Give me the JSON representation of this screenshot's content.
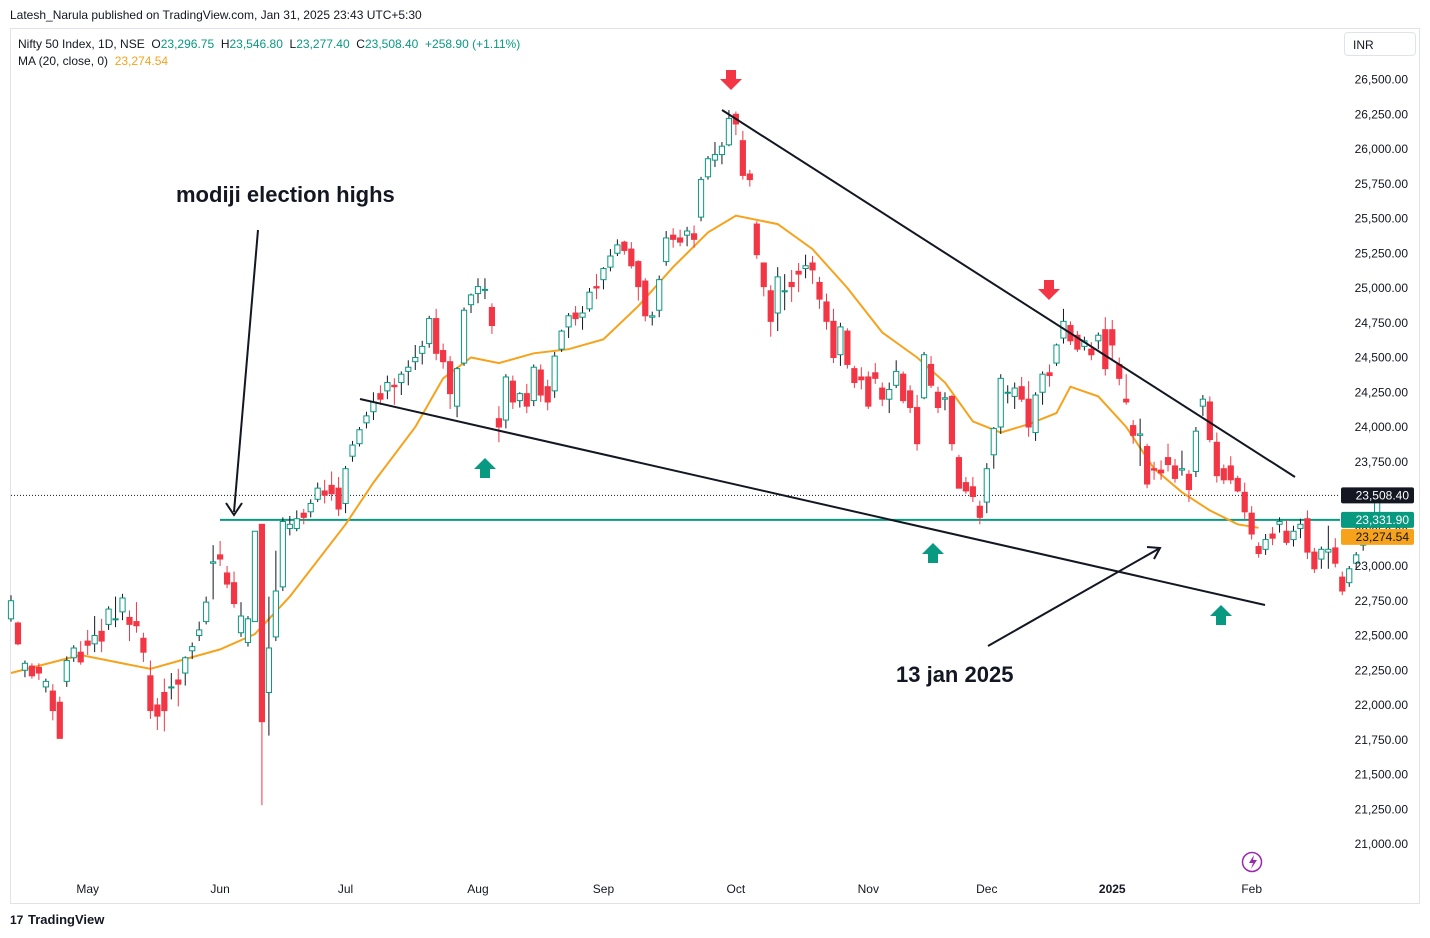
{
  "header": {
    "publisher": "Latesh_Narula published on TradingView.com, Jan 31, 2025 23:43 UTC+5:30"
  },
  "legend": {
    "symbol": "Nifty 50 Index, 1D, NSE",
    "o_label": "O",
    "o_value": "23,296.75",
    "h_label": "H",
    "h_value": "23,546.80",
    "l_label": "L",
    "l_value": "23,277.40",
    "c_label": "C",
    "c_value": "23,508.40",
    "change": "+258.90 (+1.11%)",
    "ma_label": "MA (20, close, 0)",
    "ma_value": "23,274.54"
  },
  "currency": "INR",
  "footer": {
    "brand": "TradingView",
    "logo_mark": "17"
  },
  "colors": {
    "up": "#089981",
    "down": "#f23645",
    "ma": "#f7a21b",
    "support": "#089981",
    "arrow_up": "#089981",
    "arrow_down": "#f23645"
  },
  "chart_data": {
    "type": "candlestick",
    "title": "",
    "ylim": [
      20750,
      26750
    ],
    "y_ticks": [
      "26,500.00",
      "26,250.00",
      "26,000.00",
      "25,750.00",
      "25,500.00",
      "25,250.00",
      "25,000.00",
      "24,750.00",
      "24,500.00",
      "24,250.00",
      "24,000.00",
      "23,750.00",
      "23,500.00",
      "23,250.00",
      "23,000.00",
      "22,750.00",
      "22,500.00",
      "22,250.00",
      "22,000.00",
      "21,750.00",
      "21,500.00",
      "21,250.00",
      "21,000.00"
    ],
    "x_ticks": [
      {
        "label": "May",
        "bar": 11
      },
      {
        "label": "Jun",
        "bar": 30
      },
      {
        "label": "Jul",
        "bar": 48
      },
      {
        "label": "Aug",
        "bar": 67
      },
      {
        "label": "Sep",
        "bar": 85
      },
      {
        "label": "Oct",
        "bar": 104
      },
      {
        "label": "Nov",
        "bar": 123
      },
      {
        "label": "Dec",
        "bar": 140
      },
      {
        "label": "2025",
        "bar": 158
      },
      {
        "label": "Feb",
        "bar": 178
      }
    ],
    "price_labels": [
      {
        "text": "23,508.40",
        "value": 23508.4,
        "kind": "last"
      },
      {
        "text": "23,331.90",
        "value": 23331.9,
        "kind": "support"
      },
      {
        "text": "23,274.54",
        "value": 23274.54,
        "kind": "ma"
      }
    ],
    "last_price": 23508.4,
    "support_level": 23331.9,
    "candles": [
      [
        22620,
        22790,
        22600,
        22750
      ],
      [
        22590,
        22600,
        22430,
        22440
      ],
      [
        22250,
        22320,
        22200,
        22300
      ],
      [
        22280,
        22300,
        22190,
        22210
      ],
      [
        22270,
        22300,
        22180,
        22230
      ],
      [
        22130,
        22190,
        22090,
        22170
      ],
      [
        22100,
        22150,
        21890,
        21960
      ],
      [
        22020,
        22060,
        21760,
        21760
      ],
      [
        22170,
        22350,
        22130,
        22320
      ],
      [
        22340,
        22430,
        22310,
        22410
      ],
      [
        22380,
        22460,
        22290,
        22310
      ],
      [
        22460,
        22540,
        22360,
        22430
      ],
      [
        22440,
        22640,
        22380,
        22500
      ],
      [
        22530,
        22620,
        22380,
        22460
      ],
      [
        22580,
        22710,
        22540,
        22690
      ],
      [
        22620,
        22780,
        22560,
        22620
      ],
      [
        22670,
        22800,
        22610,
        22770
      ],
      [
        22630,
        22680,
        22460,
        22580
      ],
      [
        22600,
        22740,
        22520,
        22570
      ],
      [
        22480,
        22520,
        22310,
        22380
      ],
      [
        22210,
        22320,
        21900,
        21960
      ],
      [
        22000,
        22050,
        21820,
        21920
      ],
      [
        22090,
        22190,
        21810,
        21960
      ],
      [
        22130,
        22230,
        22040,
        22130
      ],
      [
        22180,
        22260,
        21990,
        22150
      ],
      [
        22230,
        22350,
        22140,
        22340
      ],
      [
        22390,
        22450,
        22330,
        22420
      ],
      [
        22500,
        22600,
        22460,
        22540
      ],
      [
        22600,
        22780,
        22580,
        22740
      ],
      [
        23020,
        23150,
        22760,
        23030
      ],
      [
        23080,
        23180,
        23000,
        23050
      ],
      [
        22950,
        23000,
        22840,
        22870
      ],
      [
        22880,
        22960,
        22700,
        22730
      ],
      [
        22520,
        22740,
        22490,
        22640
      ],
      [
        22450,
        22640,
        22420,
        22620
      ],
      [
        22600,
        23250,
        22600,
        23250
      ],
      [
        23300,
        23300,
        21280,
        21880
      ],
      [
        22090,
        22780,
        21780,
        22410
      ],
      [
        22490,
        23110,
        22460,
        22820
      ],
      [
        22850,
        23350,
        22820,
        23320
      ],
      [
        23270,
        23360,
        23220,
        23300
      ],
      [
        23270,
        23400,
        23250,
        23340
      ],
      [
        23380,
        23410,
        23300,
        23350
      ],
      [
        23390,
        23480,
        23350,
        23450
      ],
      [
        23480,
        23600,
        23460,
        23560
      ],
      [
        23540,
        23620,
        23450,
        23510
      ],
      [
        23580,
        23680,
        23470,
        23520
      ],
      [
        23560,
        23640,
        23360,
        23410
      ],
      [
        23450,
        23720,
        23380,
        23700
      ],
      [
        23790,
        23900,
        23750,
        23870
      ],
      [
        23880,
        24000,
        23860,
        23980
      ],
      [
        24030,
        24110,
        23990,
        24080
      ],
      [
        24110,
        24250,
        24050,
        24180
      ],
      [
        24240,
        24300,
        24160,
        24200
      ],
      [
        24260,
        24370,
        24200,
        24320
      ],
      [
        24300,
        24350,
        24160,
        24290
      ],
      [
        24320,
        24400,
        24230,
        24380
      ],
      [
        24400,
        24480,
        24300,
        24430
      ],
      [
        24470,
        24590,
        24410,
        24500
      ],
      [
        24530,
        24620,
        24450,
        24580
      ],
      [
        24600,
        24800,
        24570,
        24780
      ],
      [
        24780,
        24850,
        24480,
        24530
      ],
      [
        24550,
        24600,
        24420,
        24470
      ],
      [
        24470,
        24510,
        24130,
        24240
      ],
      [
        24150,
        24430,
        24070,
        24420
      ],
      [
        24460,
        24860,
        24440,
        24840
      ],
      [
        24880,
        24960,
        24820,
        24950
      ],
      [
        24960,
        25070,
        24890,
        25010
      ],
      [
        24990,
        25070,
        24920,
        24990
      ],
      [
        24860,
        24890,
        24670,
        24730
      ],
      [
        24060,
        24150,
        23890,
        24000
      ],
      [
        24050,
        24380,
        23990,
        24360
      ],
      [
        24330,
        24370,
        24130,
        24180
      ],
      [
        24190,
        24250,
        24140,
        24240
      ],
      [
        24240,
        24310,
        24100,
        24150
      ],
      [
        24190,
        24450,
        24150,
        24430
      ],
      [
        24410,
        24450,
        24180,
        24230
      ],
      [
        24290,
        24340,
        24120,
        24180
      ],
      [
        24260,
        24540,
        24210,
        24510
      ],
      [
        24560,
        24700,
        24540,
        24690
      ],
      [
        24720,
        24820,
        24640,
        24800
      ],
      [
        24820,
        24870,
        24730,
        24780
      ],
      [
        24790,
        24870,
        24700,
        24820
      ],
      [
        24850,
        25000,
        24830,
        24970
      ],
      [
        25010,
        25100,
        24920,
        25000
      ],
      [
        25060,
        25150,
        24990,
        25140
      ],
      [
        25150,
        25280,
        25120,
        25230
      ],
      [
        25250,
        25350,
        25230,
        25310
      ],
      [
        25330,
        25340,
        25240,
        25270
      ],
      [
        25280,
        25330,
        25140,
        25160
      ],
      [
        25190,
        25200,
        24910,
        25010
      ],
      [
        25050,
        25070,
        24760,
        24800
      ],
      [
        24790,
        24830,
        24730,
        24800
      ],
      [
        24840,
        25090,
        24790,
        25060
      ],
      [
        25190,
        25410,
        25160,
        25360
      ],
      [
        25380,
        25430,
        25290,
        25350
      ],
      [
        25360,
        25420,
        25300,
        25330
      ],
      [
        25380,
        25440,
        25300,
        25410
      ],
      [
        25390,
        25450,
        25290,
        25350
      ],
      [
        25510,
        25800,
        25480,
        25780
      ],
      [
        25800,
        25950,
        25780,
        25930
      ],
      [
        25920,
        26050,
        25870,
        25960
      ],
      [
        25960,
        26050,
        25890,
        26020
      ],
      [
        26030,
        26280,
        26020,
        26220
      ],
      [
        26250,
        26270,
        26100,
        26180
      ],
      [
        26060,
        26130,
        25780,
        25810
      ],
      [
        25820,
        25850,
        25730,
        25780
      ],
      [
        25460,
        25480,
        25210,
        25240
      ],
      [
        25180,
        25180,
        24940,
        25010
      ],
      [
        24980,
        25020,
        24650,
        24760
      ],
      [
        24820,
        25150,
        24690,
        25080
      ],
      [
        24980,
        25100,
        24840,
        24980
      ],
      [
        25040,
        25130,
        24900,
        25010
      ],
      [
        25120,
        25180,
        24970,
        25100
      ],
      [
        25140,
        25240,
        25070,
        25160
      ],
      [
        25180,
        25230,
        25030,
        25130
      ],
      [
        25040,
        25080,
        24850,
        24920
      ],
      [
        24900,
        24960,
        24700,
        24760
      ],
      [
        24760,
        24850,
        24460,
        24500
      ],
      [
        24520,
        24750,
        24440,
        24720
      ],
      [
        24690,
        24710,
        24420,
        24450
      ],
      [
        24420,
        24440,
        24280,
        24320
      ],
      [
        24360,
        24430,
        24270,
        24340
      ],
      [
        24360,
        24400,
        24130,
        24150
      ],
      [
        24390,
        24460,
        24310,
        24350
      ],
      [
        24280,
        24320,
        24150,
        24200
      ],
      [
        24200,
        24320,
        24100,
        24270
      ],
      [
        24300,
        24480,
        24280,
        24400
      ],
      [
        24380,
        24400,
        24170,
        24190
      ],
      [
        24260,
        24300,
        24100,
        24140
      ],
      [
        24140,
        24230,
        23830,
        23880
      ],
      [
        24210,
        24540,
        24200,
        24520
      ],
      [
        24450,
        24510,
        24280,
        24300
      ],
      [
        24250,
        24290,
        24100,
        24140
      ],
      [
        24200,
        24250,
        24120,
        24210
      ],
      [
        24220,
        24230,
        23830,
        23880
      ],
      [
        23780,
        23800,
        23560,
        23560
      ],
      [
        23600,
        23640,
        23520,
        23540
      ],
      [
        23570,
        23640,
        23460,
        23500
      ],
      [
        23430,
        23470,
        23300,
        23350
      ],
      [
        23460,
        23740,
        23380,
        23700
      ],
      [
        23800,
        24000,
        23700,
        23990
      ],
      [
        24000,
        24380,
        23950,
        24350
      ],
      [
        24250,
        24300,
        24170,
        24250
      ],
      [
        24220,
        24320,
        24130,
        24280
      ],
      [
        24290,
        24360,
        24180,
        24200
      ],
      [
        24200,
        24330,
        23930,
        24000
      ],
      [
        23960,
        24250,
        23900,
        24230
      ],
      [
        24250,
        24400,
        24160,
        24380
      ],
      [
        24390,
        24450,
        24290,
        24370
      ],
      [
        24460,
        24600,
        24440,
        24590
      ],
      [
        24640,
        24850,
        24600,
        24760
      ],
      [
        24730,
        24760,
        24590,
        24620
      ],
      [
        24660,
        24690,
        24540,
        24560
      ],
      [
        24580,
        24650,
        24550,
        24620
      ],
      [
        24560,
        24610,
        24480,
        24520
      ],
      [
        24620,
        24680,
        24560,
        24660
      ],
      [
        24700,
        24790,
        24370,
        24420
      ],
      [
        24700,
        24770,
        24480,
        24590
      ],
      [
        24450,
        24500,
        24300,
        24350
      ],
      [
        24200,
        24380,
        24160,
        24180
      ],
      [
        24010,
        24050,
        23880,
        23940
      ],
      [
        23940,
        24060,
        23720,
        23950
      ],
      [
        23860,
        23880,
        23560,
        23590
      ],
      [
        23700,
        23750,
        23620,
        23690
      ],
      [
        23690,
        23760,
        23620,
        23670
      ],
      [
        23780,
        23880,
        23680,
        23730
      ],
      [
        23720,
        23770,
        23600,
        23630
      ],
      [
        23690,
        23830,
        23650,
        23700
      ],
      [
        23660,
        23690,
        23460,
        23550
      ],
      [
        23680,
        24000,
        23640,
        23970
      ],
      [
        24150,
        24230,
        24080,
        24200
      ],
      [
        24180,
        24220,
        23890,
        23910
      ],
      [
        23890,
        23960,
        23600,
        23650
      ],
      [
        23700,
        23730,
        23590,
        23620
      ],
      [
        23720,
        23790,
        23590,
        23620
      ],
      [
        23630,
        23650,
        23530,
        23540
      ],
      [
        23530,
        23600,
        23340,
        23390
      ],
      [
        23380,
        23430,
        23190,
        23230
      ],
      [
        23140,
        23170,
        23060,
        23090
      ],
      [
        23120,
        23230,
        23080,
        23190
      ],
      [
        23230,
        23280,
        23150,
        23200
      ],
      [
        23300,
        23350,
        23240,
        23320
      ],
      [
        23250,
        23330,
        23150,
        23170
      ],
      [
        23190,
        23290,
        23140,
        23250
      ],
      [
        23270,
        23340,
        23200,
        23300
      ],
      [
        23340,
        23400,
        23050,
        23100
      ],
      [
        23100,
        23130,
        22950,
        22980
      ],
      [
        23050,
        23140,
        22980,
        23120
      ],
      [
        23100,
        23290,
        22980,
        23120
      ],
      [
        23130,
        23200,
        22990,
        23020
      ],
      [
        22920,
        22960,
        22790,
        22820
      ],
      [
        22880,
        23000,
        22850,
        22980
      ],
      [
        23020,
        23100,
        22980,
        23080
      ],
      [
        23150,
        23210,
        23110,
        23180
      ],
      [
        23240,
        23360,
        23200,
        23250
      ],
      [
        23296.75,
        23546.8,
        23277.4,
        23508.4
      ]
    ],
    "moving_average": {
      "name": "MA (20, close, 0)",
      "points": [
        [
          0,
          22230
        ],
        [
          10,
          22360
        ],
        [
          20,
          22260
        ],
        [
          30,
          22400
        ],
        [
          35,
          22510
        ],
        [
          40,
          22780
        ],
        [
          48,
          23300
        ],
        [
          52,
          23600
        ],
        [
          58,
          24000
        ],
        [
          62,
          24350
        ],
        [
          66,
          24500
        ],
        [
          70,
          24460
        ],
        [
          75,
          24530
        ],
        [
          80,
          24560
        ],
        [
          85,
          24630
        ],
        [
          90,
          24870
        ],
        [
          95,
          25150
        ],
        [
          100,
          25400
        ],
        [
          104,
          25520
        ],
        [
          110,
          25460
        ],
        [
          115,
          25280
        ],
        [
          120,
          25000
        ],
        [
          125,
          24680
        ],
        [
          130,
          24500
        ],
        [
          134,
          24320
        ],
        [
          138,
          24040
        ],
        [
          142,
          23960
        ],
        [
          146,
          24020
        ],
        [
          150,
          24100
        ],
        [
          152,
          24290
        ],
        [
          156,
          24220
        ],
        [
          160,
          24000
        ],
        [
          164,
          23700
        ],
        [
          168,
          23530
        ],
        [
          172,
          23400
        ],
        [
          176,
          23300
        ],
        [
          179,
          23275
        ]
      ]
    },
    "annotations": [
      {
        "type": "text",
        "text": "modiji election highs"
      },
      {
        "type": "text",
        "text": "13 jan 2025"
      }
    ]
  }
}
